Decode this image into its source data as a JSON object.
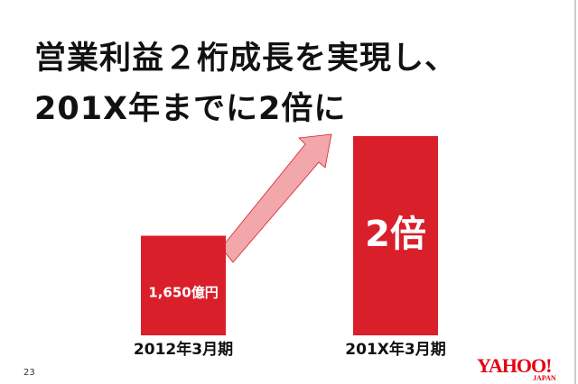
{
  "title_lines": [
    "営業利益２桁成長を実現し、",
    "201X年までに2倍に"
  ],
  "page_number": "23",
  "logo": {
    "main": "YAHOO!",
    "sub": "JAPAN"
  },
  "colors": {
    "bar": "#d91f2a",
    "arrow": "#f2a7aa",
    "arrow_stroke": "#d91f2a"
  },
  "chart_data": {
    "type": "bar",
    "categories": [
      "2012年3月期",
      "201X年3月期"
    ],
    "values": [
      1650,
      3300
    ],
    "data_labels": [
      "1,650億円",
      "2倍"
    ],
    "title": "",
    "xlabel": "",
    "ylabel": "",
    "grid": false,
    "annotation": "upward arrow from first bar to second bar"
  }
}
